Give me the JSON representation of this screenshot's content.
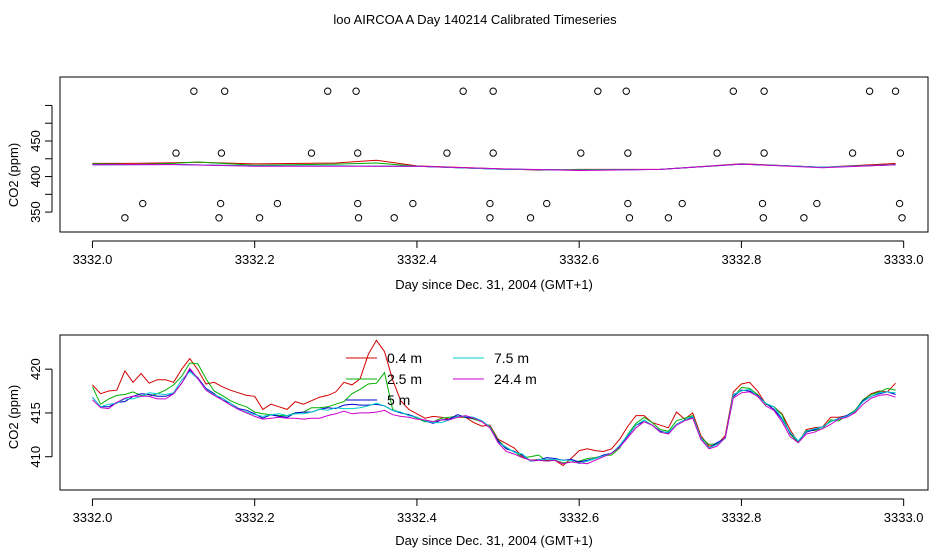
{
  "title": "loo AIRCOA A  Day 140214  Calibrated Timeseries",
  "chart_data": [
    {
      "type": "line",
      "panel": "top",
      "xlabel": "Day since Dec. 31, 2004 (GMT+1)",
      "ylabel": "CO2 (ppm)",
      "xlim": [
        3331.96,
        3333.03
      ],
      "ylim": [
        322,
        540
      ],
      "x_ticks": [
        "3332.0",
        "3332.2",
        "3332.4",
        "3332.6",
        "3332.8",
        "3333.0"
      ],
      "y_ticks": [
        "350",
        "400",
        "450"
      ],
      "y_tick_values": [
        350,
        400,
        450
      ],
      "extra_y_ticks": [
        375,
        425,
        475,
        500
      ],
      "series": [
        {
          "color": "#d40000",
          "x": [
            3332.0,
            3332.05,
            3332.1,
            3332.13,
            3332.2,
            3332.3,
            3332.35,
            3332.4,
            3332.5,
            3332.55,
            3332.6,
            3332.7,
            3332.8,
            3332.9,
            3332.99
          ],
          "values": [
            418.5,
            418.5,
            419.5,
            420.0,
            417.8,
            419.0,
            423.0,
            415.0,
            411.0,
            409.0,
            410.0,
            410.0,
            418.0,
            413.0,
            418.5
          ]
        },
        {
          "color": "#00b000",
          "x": [
            3332.0,
            3332.05,
            3332.1,
            3332.13,
            3332.2,
            3332.3,
            3332.35,
            3332.4,
            3332.5,
            3332.55,
            3332.6,
            3332.7,
            3332.8,
            3332.9,
            3332.99
          ],
          "values": [
            418.0,
            417.0,
            418.5,
            420.5,
            416.0,
            417.5,
            419.0,
            414.5,
            410.5,
            409.5,
            409.5,
            410.0,
            417.5,
            413.0,
            417.0
          ]
        },
        {
          "color": "#0000cc",
          "x": [
            3332.0,
            3332.1,
            3332.2,
            3332.3,
            3332.4,
            3332.5,
            3332.6,
            3332.7,
            3332.8,
            3332.9,
            3332.99
          ],
          "values": [
            416.5,
            417.0,
            415.0,
            415.0,
            414.5,
            410.5,
            409.0,
            410.0,
            417.5,
            413.0,
            416.5
          ]
        },
        {
          "color": "#00cccc",
          "x": [
            3332.0,
            3332.1,
            3332.2,
            3332.3,
            3332.4,
            3332.5,
            3332.6,
            3332.7,
            3332.8,
            3332.9,
            3332.99
          ],
          "values": [
            416.5,
            417.0,
            415.0,
            415.0,
            414.5,
            410.5,
            409.0,
            410.0,
            417.5,
            413.0,
            416.5
          ]
        },
        {
          "color": "#cc00cc",
          "x": [
            3332.0,
            3332.1,
            3332.2,
            3332.3,
            3332.4,
            3332.5,
            3332.6,
            3332.7,
            3332.8,
            3332.9,
            3332.99
          ],
          "values": [
            416.5,
            417.0,
            414.5,
            414.5,
            414.5,
            411.0,
            408.5,
            410.0,
            417.5,
            412.5,
            416.5
          ]
        }
      ],
      "markers": {
        "row_a": {
          "y": 520,
          "x": [
            3332.125,
            3332.163,
            3332.29,
            3332.325,
            3332.457,
            3332.494,
            3332.623,
            3332.658,
            3332.79,
            3332.828,
            3332.958,
            3332.99
          ]
        },
        "row_b": {
          "y": 433,
          "x": [
            3332.103,
            3332.159,
            3332.27,
            3332.327,
            3332.437,
            3332.494,
            3332.602,
            3332.66,
            3332.77,
            3332.828,
            3332.937,
            3332.996
          ]
        },
        "row_c": {
          "y": 362,
          "x": [
            3332.062,
            3332.158,
            3332.228,
            3332.327,
            3332.395,
            3332.49,
            3332.56,
            3332.66,
            3332.727,
            3332.826,
            3332.893,
            3332.995
          ]
        },
        "row_d": {
          "y": 342,
          "x": [
            3332.04,
            3332.156,
            3332.206,
            3332.328,
            3332.372,
            3332.49,
            3332.54,
            3332.662,
            3332.71,
            3332.827,
            3332.877,
            3332.998
          ]
        }
      }
    },
    {
      "type": "line",
      "panel": "bottom",
      "xlabel": "Day since Dec. 31, 2004 (GMT+1)",
      "ylabel": "CO2 (ppm)",
      "xlim": [
        3331.96,
        3333.03
      ],
      "ylim": [
        406.2,
        423.9
      ],
      "x_ticks": [
        "3332.0",
        "3332.2",
        "3332.4",
        "3332.6",
        "3332.8",
        "3333.0"
      ],
      "y_ticks": [
        "410",
        "415",
        "420"
      ],
      "y_tick_values": [
        410,
        415,
        420
      ],
      "legend": {
        "placement": "top-center",
        "entries": [
          "0.4 m",
          "2.5 m",
          "5 m",
          "7.5 m",
          "24.4 m"
        ]
      },
      "x": [
        3332.0,
        3332.01,
        3332.02,
        3332.03,
        3332.04,
        3332.05,
        3332.06,
        3332.07,
        3332.08,
        3332.09,
        3332.1,
        3332.11,
        3332.12,
        3332.13,
        3332.14,
        3332.15,
        3332.16,
        3332.17,
        3332.18,
        3332.19,
        3332.2,
        3332.21,
        3332.22,
        3332.23,
        3332.24,
        3332.25,
        3332.26,
        3332.27,
        3332.28,
        3332.29,
        3332.3,
        3332.31,
        3332.32,
        3332.33,
        3332.34,
        3332.35,
        3332.36,
        3332.37,
        3332.38,
        3332.39,
        3332.4,
        3332.41,
        3332.42,
        3332.43,
        3332.44,
        3332.45,
        3332.46,
        3332.47,
        3332.48,
        3332.49,
        3332.5,
        3332.51,
        3332.52,
        3332.53,
        3332.54,
        3332.55,
        3332.56,
        3332.57,
        3332.58,
        3332.59,
        3332.6,
        3332.61,
        3332.62,
        3332.63,
        3332.64,
        3332.65,
        3332.66,
        3332.67,
        3332.68,
        3332.69,
        3332.7,
        3332.71,
        3332.72,
        3332.73,
        3332.74,
        3332.75,
        3332.76,
        3332.77,
        3332.78,
        3332.79,
        3332.8,
        3332.81,
        3332.82,
        3332.83,
        3332.84,
        3332.85,
        3332.86,
        3332.87,
        3332.88,
        3332.89,
        3332.9,
        3332.91,
        3332.92,
        3332.93,
        3332.94,
        3332.95,
        3332.96,
        3332.97,
        3332.98,
        3332.99
      ],
      "series": [
        {
          "name": "0.4 m",
          "color": "#d40000",
          "values": [
            418.2,
            417.2,
            417.5,
            417.6,
            419.8,
            418.5,
            419.5,
            418.4,
            418.8,
            418.8,
            418.5,
            420.0,
            421.2,
            419.9,
            418.3,
            418.5,
            418.0,
            417.6,
            417.3,
            417.0,
            416.9,
            415.4,
            416.0,
            415.7,
            415.4,
            416.3,
            416.0,
            416.4,
            416.8,
            417.0,
            417.4,
            418.5,
            418.2,
            418.9,
            421.7,
            423.3,
            422.0,
            418.8,
            416.4,
            415.4,
            414.9,
            414.4,
            414.6,
            414.5,
            414.3,
            414.5,
            414.5,
            413.9,
            413.5,
            413.6,
            412.0,
            411.5,
            411.0,
            410.0,
            409.6,
            409.7,
            409.6,
            409.6,
            409.0,
            409.8,
            410.7,
            410.9,
            410.7,
            410.6,
            410.9,
            412.0,
            413.5,
            414.7,
            414.7,
            413.9,
            413.6,
            413.3,
            415.1,
            414.3,
            415.0,
            412.4,
            411.2,
            411.4,
            412.4,
            417.4,
            418.3,
            418.5,
            417.5,
            416.0,
            415.7,
            414.9,
            413.1,
            411.6,
            413.1,
            413.3,
            413.4,
            414.5,
            414.5,
            414.7,
            415.1,
            416.5,
            417.2,
            417.5,
            417.4,
            418.4
          ]
        },
        {
          "name": "2.5 m",
          "color": "#00b000",
          "values": [
            418.0,
            416.0,
            416.6,
            417.0,
            417.1,
            417.4,
            417.0,
            416.9,
            417.2,
            417.6,
            418.2,
            419.2,
            420.7,
            420.6,
            418.9,
            417.5,
            417.0,
            416.4,
            416.0,
            415.7,
            415.1,
            414.9,
            414.8,
            414.7,
            414.7,
            415.0,
            415.1,
            415.6,
            415.6,
            415.7,
            416.0,
            416.3,
            417.2,
            417.7,
            418.3,
            418.4,
            419.6,
            415.4,
            415.0,
            414.8,
            414.4,
            414.0,
            414.0,
            414.4,
            414.5,
            414.6,
            414.5,
            414.3,
            414.0,
            413.5,
            411.9,
            411.0,
            410.6,
            409.9,
            410.0,
            410.2,
            409.5,
            409.6,
            409.3,
            409.4,
            409.5,
            409.8,
            409.9,
            410.1,
            410.2,
            411.0,
            412.6,
            413.8,
            414.5,
            413.9,
            413.1,
            412.9,
            414.1,
            414.4,
            414.7,
            412.2,
            411.4,
            411.5,
            412.2,
            416.8,
            417.9,
            417.8,
            417.1,
            416.0,
            415.7,
            414.8,
            412.6,
            411.6,
            413.0,
            413.0,
            413.2,
            414.2,
            414.1,
            414.7,
            415.3,
            416.5,
            417.1,
            417.4,
            417.8,
            417.6
          ]
        },
        {
          "name": "5 m",
          "color": "#0000cc",
          "values": [
            416.8,
            415.7,
            415.7,
            416.2,
            416.3,
            416.9,
            417.2,
            417.1,
            416.9,
            416.9,
            417.2,
            418.4,
            419.9,
            419.0,
            417.8,
            417.2,
            416.5,
            416.1,
            415.5,
            415.3,
            414.9,
            414.4,
            414.8,
            414.6,
            414.5,
            415.0,
            415.1,
            415.1,
            415.4,
            415.6,
            415.5,
            415.9,
            416.0,
            415.9,
            415.9,
            416.0,
            415.8,
            415.3,
            415.0,
            414.8,
            414.5,
            414.1,
            413.8,
            414.2,
            414.3,
            414.8,
            414.5,
            414.4,
            414.1,
            413.3,
            411.8,
            410.9,
            410.6,
            410.2,
            409.5,
            409.6,
            409.9,
            409.8,
            409.6,
            409.7,
            409.4,
            409.6,
            409.8,
            410.2,
            410.4,
            411.2,
            412.4,
            413.6,
            414.0,
            413.6,
            412.9,
            412.7,
            413.7,
            414.2,
            414.5,
            412.0,
            411.0,
            411.6,
            412.1,
            416.9,
            417.6,
            417.5,
            417.0,
            416.1,
            415.4,
            414.3,
            412.7,
            411.8,
            412.8,
            413.1,
            413.4,
            414.0,
            414.4,
            414.7,
            415.2,
            416.4,
            416.9,
            417.2,
            417.4,
            417.1
          ]
        },
        {
          "name": "7.5 m",
          "color": "#00cccc",
          "values": [
            416.8,
            415.7,
            416.0,
            416.1,
            416.6,
            416.6,
            416.9,
            417.3,
            417.2,
            417.1,
            417.3,
            418.8,
            419.7,
            418.9,
            417.7,
            417.1,
            416.7,
            416.1,
            415.4,
            415.1,
            414.8,
            414.6,
            414.8,
            414.9,
            414.7,
            414.9,
            414.9,
            415.1,
            415.4,
            415.3,
            415.6,
            415.5,
            415.5,
            415.6,
            415.8,
            416.1,
            415.8,
            415.3,
            415.1,
            414.7,
            414.5,
            414.1,
            413.9,
            413.9,
            414.2,
            414.6,
            414.6,
            414.5,
            414.1,
            413.4,
            411.6,
            411.1,
            410.5,
            410.3,
            409.5,
            409.7,
            409.7,
            409.7,
            409.6,
            409.6,
            409.2,
            409.5,
            409.8,
            410.1,
            410.4,
            411.3,
            412.5,
            413.6,
            414.2,
            413.6,
            412.8,
            412.8,
            413.7,
            414.2,
            414.6,
            412.2,
            411.0,
            411.4,
            412.1,
            417.1,
            417.5,
            417.7,
            416.9,
            416.1,
            415.7,
            414.4,
            412.8,
            411.8,
            412.9,
            413.2,
            413.4,
            414.0,
            414.4,
            414.6,
            415.2,
            416.3,
            416.9,
            417.3,
            417.4,
            417.3
          ]
        },
        {
          "name": "24.4 m",
          "color": "#cc00cc",
          "values": [
            416.5,
            415.6,
            415.5,
            416.2,
            416.7,
            416.9,
            416.9,
            416.9,
            416.6,
            416.6,
            417.2,
            418.4,
            420.1,
            418.9,
            417.6,
            417.0,
            416.5,
            415.9,
            415.4,
            415.0,
            414.6,
            414.3,
            414.4,
            414.5,
            414.4,
            414.4,
            414.3,
            414.4,
            414.4,
            414.7,
            414.9,
            415.2,
            414.9,
            415.0,
            415.0,
            415.1,
            415.3,
            414.8,
            414.6,
            414.5,
            414.3,
            414.2,
            414.0,
            414.2,
            414.2,
            414.5,
            414.7,
            414.4,
            414.0,
            413.3,
            411.6,
            410.6,
            410.3,
            409.9,
            409.6,
            409.6,
            409.5,
            409.6,
            409.2,
            409.4,
            409.3,
            409.2,
            409.6,
            410.0,
            410.4,
            411.1,
            412.2,
            413.3,
            414.0,
            413.6,
            412.8,
            412.6,
            413.6,
            414.1,
            414.4,
            412.0,
            410.9,
            411.2,
            412.2,
            416.7,
            417.3,
            417.4,
            416.9,
            415.8,
            415.3,
            414.0,
            412.3,
            411.6,
            412.6,
            412.8,
            413.2,
            413.7,
            414.3,
            414.5,
            415.0,
            416.0,
            416.7,
            417.0,
            417.1,
            416.8
          ]
        }
      ]
    }
  ]
}
